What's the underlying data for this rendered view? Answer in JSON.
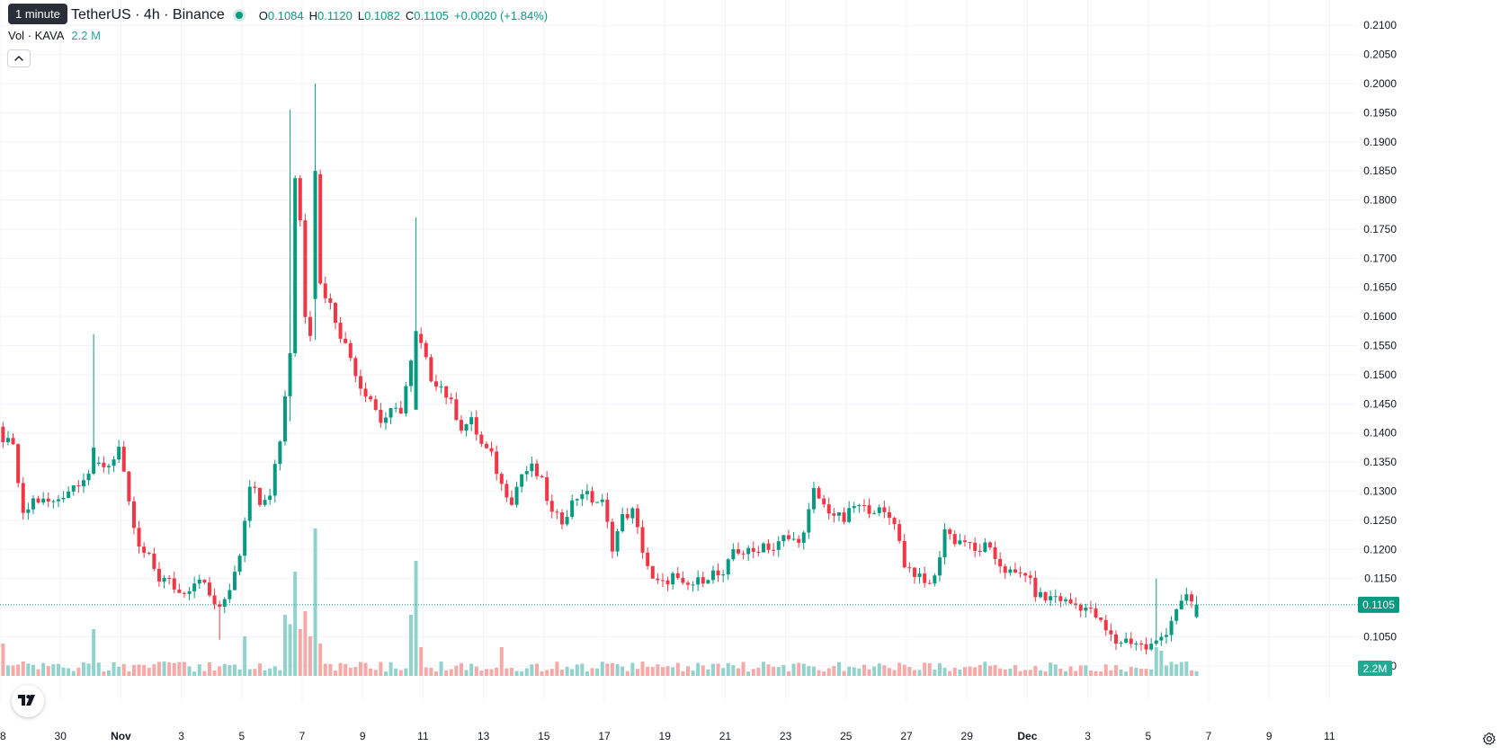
{
  "interval_badge": "1 minute",
  "symbol": {
    "title": "TetherUS · 4h · Binance",
    "ohlc": {
      "o_label": "O",
      "o": "0.1084",
      "h_label": "H",
      "h": "0.1120",
      "l_label": "L",
      "l": "0.1082",
      "c_label": "C",
      "c": "0.1105",
      "change": "+0.0020 (+1.84%)"
    }
  },
  "volume_legend": {
    "label": "Vol · KAVA",
    "value": "2.2 M"
  },
  "colors": {
    "up": "#089981",
    "down": "#f23645",
    "vol_up": "#92d2cc",
    "vol_down": "#f7a9a7",
    "grid": "#f0f3fa",
    "text": "#131722",
    "price_line": "#089981"
  },
  "icons": {
    "collapse": "chevron-up-icon",
    "logo": "tradingview-logo-icon",
    "settings": "gear-icon"
  },
  "chart_data": {
    "type": "candlestick",
    "timeframe": "4h",
    "price_axis": {
      "ticks": [
        "0.2100",
        "0.2050",
        "0.2000",
        "0.1950",
        "0.1900",
        "0.1850",
        "0.1800",
        "0.1750",
        "0.1700",
        "0.1650",
        "0.1600",
        "0.1550",
        "0.1500",
        "0.1450",
        "0.1400",
        "0.1350",
        "0.1300",
        "0.1250",
        "0.1200",
        "0.1150",
        "0.1100",
        "0.1050",
        "0.1000"
      ],
      "range": [
        0.0955,
        0.2125
      ]
    },
    "time_axis": {
      "ticks": [
        {
          "label": "28",
          "day": 0
        },
        {
          "label": "30",
          "day": 2
        },
        {
          "label": "Nov",
          "day": 4
        },
        {
          "label": "3",
          "day": 6
        },
        {
          "label": "5",
          "day": 8
        },
        {
          "label": "7",
          "day": 10
        },
        {
          "label": "9",
          "day": 12
        },
        {
          "label": "11",
          "day": 14
        },
        {
          "label": "13",
          "day": 16
        },
        {
          "label": "15",
          "day": 18
        },
        {
          "label": "17",
          "day": 20
        },
        {
          "label": "19",
          "day": 22
        },
        {
          "label": "21",
          "day": 24
        },
        {
          "label": "23",
          "day": 26
        },
        {
          "label": "25",
          "day": 28
        },
        {
          "label": "27",
          "day": 30
        },
        {
          "label": "29",
          "day": 32
        },
        {
          "label": "Dec",
          "day": 34
        },
        {
          "label": "3",
          "day": 36
        },
        {
          "label": "5",
          "day": 38
        },
        {
          "label": "7",
          "day": 40
        },
        {
          "label": "9",
          "day": 42
        },
        {
          "label": "11",
          "day": 44
        }
      ],
      "first_candle_day": -1.9
    },
    "last_price": "0.1105",
    "last_volume": "2.2M",
    "close_path": [
      [
        0,
        0.142
      ],
      [
        6,
        0.1425
      ],
      [
        10,
        0.142
      ],
      [
        12,
        0.139
      ],
      [
        14,
        0.1375
      ],
      [
        16,
        0.1255
      ],
      [
        18,
        0.1285
      ],
      [
        22,
        0.128
      ],
      [
        24,
        0.1295
      ],
      [
        28,
        0.1325
      ],
      [
        31,
        0.1345
      ],
      [
        33,
        0.1345
      ],
      [
        35,
        0.1375
      ],
      [
        37,
        0.1275
      ],
      [
        39,
        0.12
      ],
      [
        41,
        0.1185
      ],
      [
        43,
        0.115
      ],
      [
        45,
        0.1145
      ],
      [
        47,
        0.1125
      ],
      [
        49,
        0.1135
      ],
      [
        51,
        0.1155
      ],
      [
        53,
        0.112
      ],
      [
        55,
        0.1095
      ],
      [
        57,
        0.1135
      ],
      [
        59,
        0.1195
      ],
      [
        61,
        0.1315
      ],
      [
        63,
        0.1285
      ],
      [
        65,
        0.13
      ],
      [
        67,
        0.139
      ],
      [
        69,
        0.154
      ],
      [
        70,
        0.184
      ],
      [
        71,
        0.1765
      ],
      [
        72,
        0.1605
      ],
      [
        73,
        0.1575
      ],
      [
        74,
        0.185
      ],
      [
        75,
        0.1655
      ],
      [
        77,
        0.162
      ],
      [
        79,
        0.157
      ],
      [
        81,
        0.153
      ],
      [
        83,
        0.148
      ],
      [
        85,
        0.146
      ],
      [
        87,
        0.142
      ],
      [
        89,
        0.1435
      ],
      [
        91,
        0.144
      ],
      [
        93,
        0.152
      ],
      [
        94,
        0.1565
      ],
      [
        95,
        0.155
      ],
      [
        97,
        0.1495
      ],
      [
        99,
        0.148
      ],
      [
        101,
        0.145
      ],
      [
        103,
        0.141
      ],
      [
        105,
        0.142
      ],
      [
        107,
        0.138
      ],
      [
        109,
        0.136
      ],
      [
        111,
        0.131
      ],
      [
        113,
        0.1285
      ],
      [
        115,
        0.133
      ],
      [
        117,
        0.134
      ],
      [
        119,
        0.1315
      ],
      [
        121,
        0.126
      ],
      [
        123,
        0.125
      ],
      [
        125,
        0.128
      ],
      [
        127,
        0.13
      ],
      [
        129,
        0.1285
      ],
      [
        131,
        0.128
      ],
      [
        133,
        0.1205
      ],
      [
        135,
        0.1255
      ],
      [
        137,
        0.1265
      ],
      [
        139,
        0.12
      ],
      [
        141,
        0.1145
      ],
      [
        143,
        0.114
      ],
      [
        145,
        0.1155
      ],
      [
        147,
        0.1135
      ],
      [
        149,
        0.114
      ],
      [
        151,
        0.115
      ],
      [
        153,
        0.116
      ],
      [
        155,
        0.115
      ],
      [
        157,
        0.12
      ],
      [
        159,
        0.1195
      ],
      [
        161,
        0.1195
      ],
      [
        163,
        0.121
      ],
      [
        165,
        0.12
      ],
      [
        167,
        0.122
      ],
      [
        169,
        0.1215
      ],
      [
        171,
        0.1225
      ],
      [
        173,
        0.13
      ],
      [
        175,
        0.1275
      ],
      [
        177,
        0.126
      ],
      [
        179,
        0.125
      ],
      [
        181,
        0.1275
      ],
      [
        183,
        0.127
      ],
      [
        185,
        0.127
      ],
      [
        187,
        0.126
      ],
      [
        189,
        0.125
      ],
      [
        191,
        0.1175
      ],
      [
        193,
        0.116
      ],
      [
        195,
        0.114
      ],
      [
        197,
        0.115
      ],
      [
        199,
        0.1235
      ],
      [
        201,
        0.1215
      ],
      [
        203,
        0.1215
      ],
      [
        205,
        0.1195
      ],
      [
        207,
        0.1205
      ],
      [
        209,
        0.1185
      ],
      [
        211,
        0.1165
      ],
      [
        213,
        0.1155
      ],
      [
        215,
        0.116
      ],
      [
        217,
        0.1125
      ],
      [
        219,
        0.1115
      ],
      [
        221,
        0.112
      ],
      [
        223,
        0.111
      ],
      [
        225,
        0.1105
      ],
      [
        227,
        0.11
      ],
      [
        229,
        0.1085
      ],
      [
        231,
        0.106
      ],
      [
        233,
        0.104
      ],
      [
        235,
        0.1045
      ],
      [
        237,
        0.104
      ],
      [
        239,
        0.103
      ],
      [
        241,
        0.104
      ],
      [
        243,
        0.106
      ],
      [
        245,
        0.11
      ],
      [
        247,
        0.1115
      ],
      [
        249,
        0.1105
      ]
    ],
    "spikes": [
      {
        "i": 30,
        "high": 0.157,
        "open": 0.133,
        "close": 0.1375
      },
      {
        "i": 69,
        "high": 0.1955,
        "low": 0.142
      },
      {
        "i": 74,
        "high": 0.2,
        "low": 0.156,
        "open": 0.163,
        "close": 0.185
      },
      {
        "i": 94,
        "high": 0.177,
        "low": 0.145,
        "open": 0.144,
        "close": 0.1575
      },
      {
        "i": 55,
        "low": 0.1045
      },
      {
        "i": 241,
        "high": 0.115
      }
    ],
    "volume_spikes": [
      {
        "i": 12,
        "rel": 0.45
      },
      {
        "i": 30,
        "rel": 0.65
      },
      {
        "i": 60,
        "rel": 0.55
      },
      {
        "i": 68,
        "rel": 0.85
      },
      {
        "i": 69,
        "rel": 0.72
      },
      {
        "i": 70,
        "rel": 1.45
      },
      {
        "i": 71,
        "rel": 0.65
      },
      {
        "i": 72,
        "rel": 0.9
      },
      {
        "i": 73,
        "rel": 0.55
      },
      {
        "i": 74,
        "rel": 2.05
      },
      {
        "i": 75,
        "rel": 0.45
      },
      {
        "i": 93,
        "rel": 0.85
      },
      {
        "i": 94,
        "rel": 1.6
      },
      {
        "i": 95,
        "rel": 0.4
      },
      {
        "i": 111,
        "rel": 0.4
      },
      {
        "i": 241,
        "rel": 0.4
      },
      {
        "i": 242,
        "rel": 0.35
      }
    ]
  }
}
